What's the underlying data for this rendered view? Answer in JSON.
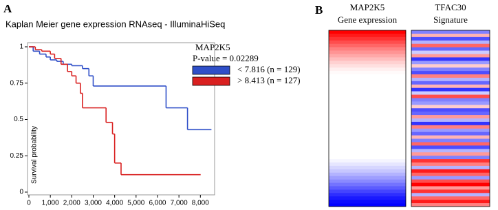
{
  "chart_data": [
    {
      "type": "step",
      "panel": "A",
      "title": "Kaplan Meier gene expression RNAseq - IlluminaHiSeq",
      "y_label": "Survival probability",
      "legend_title": "MAP2K5",
      "legend_subtitle": "P-value = 0.02289",
      "xlim": [
        0,
        8600
      ],
      "ylim": [
        0,
        1
      ],
      "xticks": [
        0,
        {
          "value": 1000,
          "label": "1,000"
        },
        {
          "value": 2000,
          "label": "2,000"
        },
        {
          "value": 3000,
          "label": "3,000"
        },
        {
          "value": 4000,
          "label": "4,000"
        },
        {
          "value": 5000,
          "label": "5,000"
        },
        {
          "value": 6000,
          "label": "6,000"
        },
        {
          "value": 7000,
          "label": "7,000"
        },
        {
          "value": 8000,
          "label": "8,000"
        }
      ],
      "yticks": [
        0,
        0.25,
        0.5,
        0.75,
        1
      ],
      "series": [
        {
          "name": "< 7.816 (n = 129)",
          "color": "#2f4fc8",
          "x": [
            0,
            200,
            500,
            800,
            1000,
            1300,
            1600,
            2000,
            2500,
            2800,
            3000,
            6400,
            7400,
            8500
          ],
          "values": [
            1,
            0.97,
            0.95,
            0.93,
            0.91,
            0.9,
            0.88,
            0.87,
            0.85,
            0.8,
            0.73,
            0.58,
            0.43,
            0.43
          ]
        },
        {
          "name": "> 8.413 (n = 127)",
          "color": "#d92020",
          "x": [
            0,
            300,
            600,
            1000,
            1200,
            1500,
            1800,
            2000,
            2200,
            2400,
            2500,
            3600,
            3900,
            4000,
            4300,
            8000
          ],
          "values": [
            1,
            0.98,
            0.97,
            0.95,
            0.92,
            0.88,
            0.83,
            0.8,
            0.75,
            0.68,
            0.58,
            0.48,
            0.4,
            0.2,
            0.12,
            0.12
          ]
        }
      ]
    },
    {
      "type": "heatmap",
      "panel": "B",
      "high_color": "#ff0000",
      "low_color": "#0000ff",
      "columns": [
        {
          "title": "MAP2K5",
          "subtitle": "Gene expression",
          "values": [
            1,
            0.9,
            0.8,
            0.7,
            0.6,
            0.5,
            0.42,
            0.34,
            0.26,
            0.18,
            0.12,
            0.06,
            0.02,
            0,
            0,
            0,
            0,
            0,
            0,
            0,
            0,
            0,
            0,
            0,
            0,
            0,
            0,
            0,
            0,
            0,
            0,
            0,
            0,
            0,
            0,
            0,
            0,
            0,
            -0.04,
            -0.1,
            -0.16,
            -0.22,
            -0.3,
            -0.38,
            -0.46,
            -0.55,
            -0.64,
            -0.73,
            -0.82,
            -0.9,
            -0.96,
            -1
          ]
        },
        {
          "title": "TFAC30",
          "subtitle": "Signature",
          "values": [
            -0.5,
            0.3,
            -0.7,
            -0.3,
            0.6,
            -0.6,
            -0.2,
            0.4,
            -0.8,
            -0.4,
            0.2,
            -0.5,
            -0.7,
            0.5,
            -0.3,
            -0.6,
            0.3,
            -0.8,
            -0.2,
            0.7,
            -0.5,
            -0.4,
            0.2,
            -0.7,
            -0.6,
            0.4,
            -0.3,
            -0.8,
            0.5,
            -0.4,
            -0.6,
            0.3,
            -0.5,
            0.6,
            -0.7,
            -0.3,
            0.4,
            -0.5,
            0.8,
            0.5,
            -0.3,
            0.9,
            0.6,
            -0.4,
            0.7,
            1,
            0.4,
            0.8,
            -0.3,
            0.6,
            0.9,
            0.5
          ]
        }
      ]
    }
  ]
}
